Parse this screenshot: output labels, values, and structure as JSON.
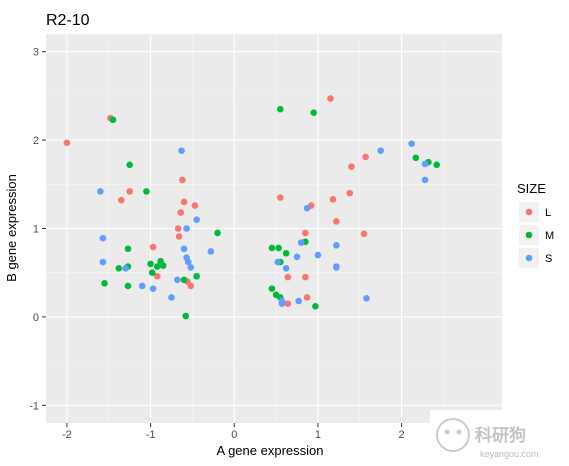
{
  "chart_data": {
    "type": "scatter",
    "title": "R2-10",
    "xlabel": "A gene expression",
    "ylabel": "B gene expression",
    "xlim": [
      -2.25,
      3.2
    ],
    "ylim": [
      -1.2,
      3.2
    ],
    "xticks": [
      -2,
      -1,
      0,
      1,
      2
    ],
    "yticks": [
      -1,
      0,
      1,
      2,
      3
    ],
    "grid": true,
    "legend": {
      "title": "SIZE",
      "position": "right"
    },
    "series": [
      {
        "name": "L",
        "color": "#F8766D",
        "points": [
          [
            -2.0,
            1.97
          ],
          [
            -1.48,
            2.25
          ],
          [
            -1.35,
            1.32
          ],
          [
            -1.25,
            1.42
          ],
          [
            -0.97,
            0.79
          ],
          [
            -0.92,
            0.46
          ],
          [
            -0.67,
            1.0
          ],
          [
            -0.66,
            0.91
          ],
          [
            -0.64,
            1.18
          ],
          [
            -0.62,
            1.55
          ],
          [
            -0.6,
            1.3
          ],
          [
            -0.56,
            0.4
          ],
          [
            -0.52,
            0.35
          ],
          [
            -0.47,
            1.26
          ],
          [
            0.55,
            1.35
          ],
          [
            0.64,
            0.45
          ],
          [
            0.85,
            0.95
          ],
          [
            0.85,
            0.45
          ],
          [
            0.92,
            1.26
          ],
          [
            1.15,
            2.47
          ],
          [
            1.18,
            1.33
          ],
          [
            1.22,
            1.08
          ],
          [
            1.38,
            1.4
          ],
          [
            1.4,
            1.7
          ],
          [
            1.55,
            0.94
          ],
          [
            1.57,
            1.81
          ],
          [
            0.64,
            0.15
          ],
          [
            0.87,
            0.22
          ]
        ]
      },
      {
        "name": "M",
        "color": "#00BA38",
        "points": [
          [
            -1.45,
            2.23
          ],
          [
            -1.55,
            0.38
          ],
          [
            -1.25,
            1.72
          ],
          [
            -1.27,
            0.77
          ],
          [
            -1.27,
            0.57
          ],
          [
            -1.27,
            0.35
          ],
          [
            -1.38,
            0.55
          ],
          [
            -1.05,
            1.42
          ],
          [
            -1.0,
            0.6
          ],
          [
            -0.98,
            0.5
          ],
          [
            -0.92,
            0.57
          ],
          [
            -0.88,
            0.63
          ],
          [
            -0.85,
            0.58
          ],
          [
            -0.6,
            0.42
          ],
          [
            -0.58,
            0.01
          ],
          [
            -0.45,
            0.46
          ],
          [
            -0.2,
            0.95
          ],
          [
            0.45,
            0.78
          ],
          [
            0.45,
            0.32
          ],
          [
            0.5,
            0.25
          ],
          [
            0.53,
            0.78
          ],
          [
            0.55,
            2.35
          ],
          [
            0.55,
            0.62
          ],
          [
            0.62,
            0.72
          ],
          [
            0.85,
            0.85
          ],
          [
            0.95,
            2.31
          ],
          [
            0.97,
            0.12
          ],
          [
            2.17,
            1.8
          ],
          [
            2.32,
            1.75
          ],
          [
            2.42,
            1.72
          ],
          [
            0.55,
            0.22
          ]
        ]
      },
      {
        "name": "S",
        "color": "#619CFF",
        "points": [
          [
            -1.6,
            1.42
          ],
          [
            -1.57,
            0.89
          ],
          [
            -1.57,
            0.62
          ],
          [
            -1.3,
            0.55
          ],
          [
            -1.1,
            0.35
          ],
          [
            -0.97,
            0.32
          ],
          [
            -0.75,
            0.22
          ],
          [
            -0.68,
            0.42
          ],
          [
            -0.63,
            1.88
          ],
          [
            -0.6,
            0.77
          ],
          [
            -0.57,
            0.67
          ],
          [
            -0.57,
            1.0
          ],
          [
            -0.55,
            0.62
          ],
          [
            -0.52,
            0.56
          ],
          [
            -0.45,
            1.1
          ],
          [
            -0.28,
            0.74
          ],
          [
            0.52,
            0.62
          ],
          [
            0.57,
            0.18
          ],
          [
            0.57,
            0.15
          ],
          [
            0.62,
            0.55
          ],
          [
            0.75,
            0.68
          ],
          [
            0.77,
            0.18
          ],
          [
            0.8,
            0.84
          ],
          [
            0.87,
            1.23
          ],
          [
            1.0,
            0.7
          ],
          [
            1.22,
            0.57
          ],
          [
            1.22,
            0.56
          ],
          [
            1.22,
            0.81
          ],
          [
            1.58,
            0.21
          ],
          [
            1.75,
            1.88
          ],
          [
            2.12,
            1.96
          ],
          [
            2.28,
            1.73
          ],
          [
            2.28,
            1.55
          ]
        ]
      }
    ]
  },
  "watermark": {
    "text_large": "科研狗",
    "text_small": "keyangou.com"
  }
}
